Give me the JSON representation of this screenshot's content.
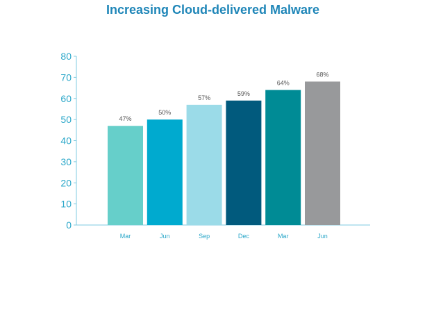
{
  "chart_data": {
    "type": "bar",
    "title": "Increasing Cloud-delivered Malware",
    "xlabel": "",
    "ylabel": "",
    "categories": [
      "Mar",
      "Jun",
      "Sep",
      "Dec",
      "Mar",
      "Jun"
    ],
    "values": [
      47,
      50,
      57,
      59,
      64,
      68
    ],
    "data_labels": [
      "47%",
      "50%",
      "57%",
      "59%",
      "64%",
      "68%"
    ],
    "colors": [
      "#66cfca",
      "#00aacf",
      "#9bdbe8",
      "#015a7d",
      "#008b95",
      "#98999b"
    ],
    "ylim": [
      0,
      80
    ],
    "yticks": [
      0,
      10,
      20,
      30,
      40,
      50,
      60,
      70,
      80
    ],
    "grid": false,
    "axis_color": "#7fcbe0"
  }
}
